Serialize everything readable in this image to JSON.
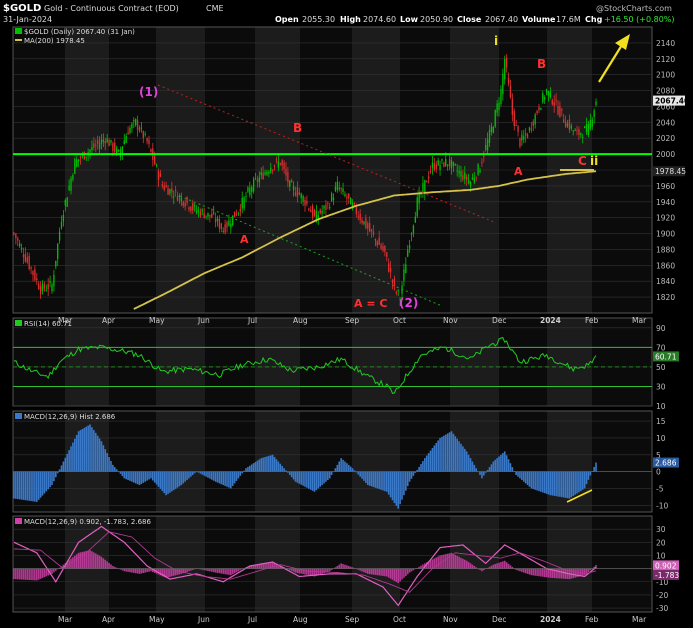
{
  "header": {
    "symbol": "$GOLD",
    "name": "Gold - Continuous Contract (EOD)",
    "exchange": "CME",
    "date": "31-Jan-2024",
    "open_label": "Open",
    "open": "2055.30",
    "high_label": "High",
    "high": "2074.60",
    "low_label": "Low",
    "low": "2050.90",
    "close_label": "Close",
    "close": "2067.40",
    "volume_label": "Volume",
    "volume": "17.6M",
    "chg_label": "Chg",
    "chg": "+16.50 (+0.80%)",
    "credit": "@StockCharts.com"
  },
  "colors": {
    "background": "#000000",
    "panel": "#0f0f0f",
    "grid": "#3a3a3a",
    "up_candle": "#00c000",
    "down_candle": "#e03030",
    "ma": "#d4c24a",
    "support": "#00ff00",
    "wave_red": "#ff3030",
    "wave_magenta": "#e040e0",
    "arrow": "#f0e020",
    "rsi": "#22c822",
    "macd_hist": "#3a78c8",
    "macd_lines": "#d040a8"
  },
  "chart_data": [
    {
      "type": "candlestick",
      "legend": [
        "$GOLD (Daily) 2067.40 (31 Jan)",
        "MA(200) 1978.45"
      ],
      "price_tag": "2067.40",
      "ma_tag": "1978.45",
      "ylim": [
        1800,
        2160
      ],
      "yticks": [
        1820,
        1840,
        1860,
        1880,
        1900,
        1920,
        1940,
        1960,
        1980,
        2000,
        2020,
        2040,
        2060,
        2080,
        2100,
        2120,
        2140
      ],
      "x_labels": [
        "Mar",
        "Apr",
        "May",
        "Jun",
        "Jul",
        "Aug",
        "Sep",
        "Oct",
        "Nov",
        "Dec",
        "2024",
        "Feb",
        "Mar"
      ],
      "close_keypoints": [
        [
          0,
          1900
        ],
        [
          8,
          1860
        ],
        [
          14,
          1830
        ],
        [
          20,
          1835
        ],
        [
          25,
          1920
        ],
        [
          32,
          1990
        ],
        [
          40,
          2005
        ],
        [
          48,
          2020
        ],
        [
          55,
          2000
        ],
        [
          60,
          2030
        ],
        [
          64,
          2040
        ],
        [
          70,
          2015
        ],
        [
          78,
          1960
        ],
        [
          85,
          1950
        ],
        [
          95,
          1930
        ],
        [
          105,
          1920
        ],
        [
          110,
          1905
        ],
        [
          118,
          1930
        ],
        [
          125,
          1960
        ],
        [
          135,
          1985
        ],
        [
          140,
          1990
        ],
        [
          145,
          1960
        ],
        [
          152,
          1945
        ],
        [
          158,
          1920
        ],
        [
          165,
          1935
        ],
        [
          170,
          1960
        ],
        [
          178,
          1935
        ],
        [
          185,
          1910
        ],
        [
          195,
          1875
        ],
        [
          200,
          1830
        ],
        [
          203,
          1820
        ],
        [
          207,
          1880
        ],
        [
          212,
          1940
        ],
        [
          220,
          1985
        ],
        [
          228,
          1990
        ],
        [
          235,
          1975
        ],
        [
          240,
          1965
        ],
        [
          245,
          1985
        ],
        [
          252,
          2040
        ],
        [
          256,
          2080
        ],
        [
          258,
          2120
        ],
        [
          262,
          2050
        ],
        [
          266,
          2015
        ],
        [
          270,
          2025
        ],
        [
          276,
          2060
        ],
        [
          280,
          2080
        ],
        [
          284,
          2065
        ],
        [
          290,
          2040
        ],
        [
          296,
          2025
        ],
        [
          302,
          2032
        ],
        [
          306,
          2067.4
        ]
      ],
      "ma_keypoints": [
        [
          63,
          1805
        ],
        [
          80,
          1825
        ],
        [
          100,
          1850
        ],
        [
          120,
          1870
        ],
        [
          140,
          1895
        ],
        [
          160,
          1918
        ],
        [
          180,
          1935
        ],
        [
          200,
          1948
        ],
        [
          220,
          1952
        ],
        [
          240,
          1955
        ],
        [
          255,
          1960
        ],
        [
          270,
          1968
        ],
        [
          290,
          1975
        ],
        [
          306,
          1978.45
        ]
      ],
      "total_bars": 307,
      "horizontal_support": 2000,
      "annotations": [
        {
          "text": "(1)",
          "color": "magenta"
        },
        {
          "text": "B",
          "color": "red"
        },
        {
          "text": "A",
          "color": "red"
        },
        {
          "text": "A = C",
          "color": "red"
        },
        {
          "text": "(2)",
          "color": "magenta"
        },
        {
          "text": "i",
          "color": "yellow"
        },
        {
          "text": "A",
          "color": "red"
        },
        {
          "text": "B",
          "color": "red"
        },
        {
          "text": "C",
          "color": "red"
        },
        {
          "text": "ii",
          "color": "yellow"
        }
      ]
    },
    {
      "type": "line",
      "legend": "RSI(14) 60.71",
      "value_tag": "60.71",
      "ylim": [
        10,
        100
      ],
      "yticks": [
        10,
        30,
        50,
        70,
        90
      ],
      "guides": [
        30,
        50,
        70
      ],
      "keypoints": [
        [
          0,
          55
        ],
        [
          10,
          45
        ],
        [
          18,
          40
        ],
        [
          24,
          55
        ],
        [
          34,
          68
        ],
        [
          46,
          70
        ],
        [
          58,
          66
        ],
        [
          66,
          62
        ],
        [
          78,
          45
        ],
        [
          92,
          48
        ],
        [
          108,
          42
        ],
        [
          120,
          52
        ],
        [
          134,
          58
        ],
        [
          146,
          46
        ],
        [
          160,
          50
        ],
        [
          172,
          58
        ],
        [
          186,
          40
        ],
        [
          196,
          30
        ],
        [
          200,
          22
        ],
        [
          206,
          40
        ],
        [
          214,
          62
        ],
        [
          226,
          70
        ],
        [
          240,
          58
        ],
        [
          250,
          72
        ],
        [
          258,
          78
        ],
        [
          266,
          55
        ],
        [
          280,
          62
        ],
        [
          294,
          48
        ],
        [
          302,
          52
        ],
        [
          306,
          60.71
        ]
      ]
    },
    {
      "type": "bar",
      "legend": "MACD(12,26,9) Hist 2.686",
      "value_tag": "2.686",
      "ylim": [
        -12,
        18
      ],
      "yticks": [
        -10,
        -5,
        0,
        5,
        10,
        15
      ],
      "keypoints": [
        [
          0,
          -8
        ],
        [
          12,
          -9
        ],
        [
          20,
          -4
        ],
        [
          26,
          3
        ],
        [
          34,
          12
        ],
        [
          40,
          14
        ],
        [
          46,
          9
        ],
        [
          52,
          2
        ],
        [
          58,
          -2
        ],
        [
          66,
          -4
        ],
        [
          72,
          -2
        ],
        [
          80,
          -7
        ],
        [
          88,
          -4
        ],
        [
          96,
          0
        ],
        [
          106,
          -3
        ],
        [
          114,
          -5
        ],
        [
          122,
          1
        ],
        [
          130,
          4
        ],
        [
          136,
          5
        ],
        [
          142,
          1
        ],
        [
          148,
          -3
        ],
        [
          158,
          -6
        ],
        [
          166,
          -2
        ],
        [
          172,
          4
        ],
        [
          178,
          1
        ],
        [
          186,
          -4
        ],
        [
          196,
          -6
        ],
        [
          202,
          -11
        ],
        [
          208,
          -3
        ],
        [
          216,
          4
        ],
        [
          224,
          10
        ],
        [
          230,
          12
        ],
        [
          238,
          6
        ],
        [
          246,
          -2
        ],
        [
          252,
          3
        ],
        [
          258,
          6
        ],
        [
          264,
          -1
        ],
        [
          272,
          -5
        ],
        [
          282,
          -7
        ],
        [
          292,
          -8
        ],
        [
          300,
          -5
        ],
        [
          306,
          2.686
        ]
      ],
      "pointer": "yellow rising line"
    },
    {
      "type": "line",
      "legend": "MACD(12,26,9) 0.902, -1.783, 2.686",
      "value_tags": [
        "0.902",
        "-1.783"
      ],
      "ylim": [
        -33,
        40
      ],
      "yticks": [
        -30,
        -20,
        -10,
        0,
        10,
        20,
        30
      ],
      "series": [
        {
          "keypoints": [
            [
              0,
              20
            ],
            [
              12,
              12
            ],
            [
              22,
              -10
            ],
            [
              34,
              20
            ],
            [
              46,
              32
            ],
            [
              58,
              20
            ],
            [
              70,
              2
            ],
            [
              82,
              -8
            ],
            [
              96,
              -4
            ],
            [
              110,
              -10
            ],
            [
              124,
              2
            ],
            [
              136,
              5
            ],
            [
              150,
              -6
            ],
            [
              166,
              -4
            ],
            [
              180,
              -4
            ],
            [
              194,
              -14
            ],
            [
              202,
              -28
            ],
            [
              212,
              -6
            ],
            [
              224,
              16
            ],
            [
              236,
              18
            ],
            [
              248,
              4
            ],
            [
              258,
              18
            ],
            [
              268,
              10
            ],
            [
              280,
              0
            ],
            [
              292,
              -4
            ],
            [
              300,
              -6
            ],
            [
              306,
              0.902
            ]
          ]
        },
        {
          "keypoints": [
            [
              0,
              15
            ],
            [
              14,
              14
            ],
            [
              26,
              0
            ],
            [
              38,
              12
            ],
            [
              50,
              28
            ],
            [
              62,
              24
            ],
            [
              74,
              8
            ],
            [
              86,
              -2
            ],
            [
              100,
              -6
            ],
            [
              114,
              -8
            ],
            [
              128,
              -2
            ],
            [
              140,
              3
            ],
            [
              154,
              -2
            ],
            [
              170,
              -3
            ],
            [
              184,
              -5
            ],
            [
              198,
              -12
            ],
            [
              208,
              -18
            ],
            [
              220,
              0
            ],
            [
              232,
              12
            ],
            [
              244,
              10
            ],
            [
              256,
              8
            ],
            [
              266,
              12
            ],
            [
              278,
              6
            ],
            [
              290,
              -1
            ],
            [
              300,
              -4
            ],
            [
              306,
              -1.783
            ]
          ]
        }
      ],
      "hist_keypoints": [
        [
          0,
          -8
        ],
        [
          12,
          -9
        ],
        [
          20,
          -4
        ],
        [
          26,
          3
        ],
        [
          34,
          12
        ],
        [
          40,
          14
        ],
        [
          46,
          9
        ],
        [
          52,
          2
        ],
        [
          58,
          -2
        ],
        [
          66,
          -4
        ],
        [
          72,
          -2
        ],
        [
          80,
          -7
        ],
        [
          88,
          -4
        ],
        [
          96,
          0
        ],
        [
          106,
          -3
        ],
        [
          114,
          -5
        ],
        [
          122,
          1
        ],
        [
          130,
          4
        ],
        [
          136,
          5
        ],
        [
          142,
          1
        ],
        [
          148,
          -3
        ],
        [
          158,
          -6
        ],
        [
          166,
          -2
        ],
        [
          172,
          4
        ],
        [
          178,
          1
        ],
        [
          186,
          -4
        ],
        [
          196,
          -6
        ],
        [
          202,
          -11
        ],
        [
          208,
          -3
        ],
        [
          216,
          4
        ],
        [
          224,
          10
        ],
        [
          230,
          12
        ],
        [
          238,
          6
        ],
        [
          246,
          -2
        ],
        [
          252,
          3
        ],
        [
          258,
          6
        ],
        [
          264,
          -1
        ],
        [
          272,
          -5
        ],
        [
          282,
          -7
        ],
        [
          292,
          -8
        ],
        [
          300,
          -5
        ],
        [
          306,
          2.686
        ]
      ]
    }
  ]
}
